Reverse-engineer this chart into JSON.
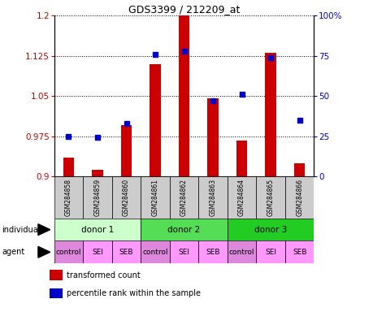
{
  "title": "GDS3399 / 212209_at",
  "samples": [
    "GSM284858",
    "GSM284859",
    "GSM284860",
    "GSM284861",
    "GSM284862",
    "GSM284863",
    "GSM284864",
    "GSM284865",
    "GSM284866"
  ],
  "transformed_count": [
    0.935,
    0.912,
    0.995,
    1.11,
    1.2,
    1.045,
    0.966,
    1.13,
    0.924
  ],
  "percentile_pct": [
    25,
    24,
    33,
    76,
    78,
    47,
    51,
    74,
    35
  ],
  "ylim_left": [
    0.9,
    1.2
  ],
  "ylim_right": [
    0,
    100
  ],
  "yticks_left": [
    0.9,
    0.975,
    1.05,
    1.125,
    1.2
  ],
  "yticks_right": [
    0,
    25,
    50,
    75,
    100
  ],
  "ytick_labels_left": [
    "0.9",
    "0.975",
    "1.05",
    "1.125",
    "1.2"
  ],
  "ytick_labels_right": [
    "0",
    "25",
    "50",
    "75",
    "100%"
  ],
  "individuals": [
    {
      "label": "donor 1",
      "span": [
        0,
        3
      ],
      "color": "#ccffcc"
    },
    {
      "label": "donor 2",
      "span": [
        3,
        6
      ],
      "color": "#55dd55"
    },
    {
      "label": "donor 3",
      "span": [
        6,
        9
      ],
      "color": "#22cc22"
    }
  ],
  "agents": [
    "control",
    "SEI",
    "SEB",
    "control",
    "SEI",
    "SEB",
    "control",
    "SEI",
    "SEB"
  ],
  "control_color": "#dd88dd",
  "seiSeb_color": "#ff99ff",
  "bar_color": "#cc0000",
  "dot_color": "#0000cc",
  "label_color_left": "#cc0000",
  "label_color_right": "#0000cc",
  "sample_bg": "#cccccc",
  "plot_bg": "#ffffff",
  "title_fontsize": 9,
  "tick_fontsize": 7.5,
  "sample_fontsize": 5.5,
  "ind_fontsize": 7.5,
  "agent_fontsize": 6.5,
  "legend_fontsize": 7
}
